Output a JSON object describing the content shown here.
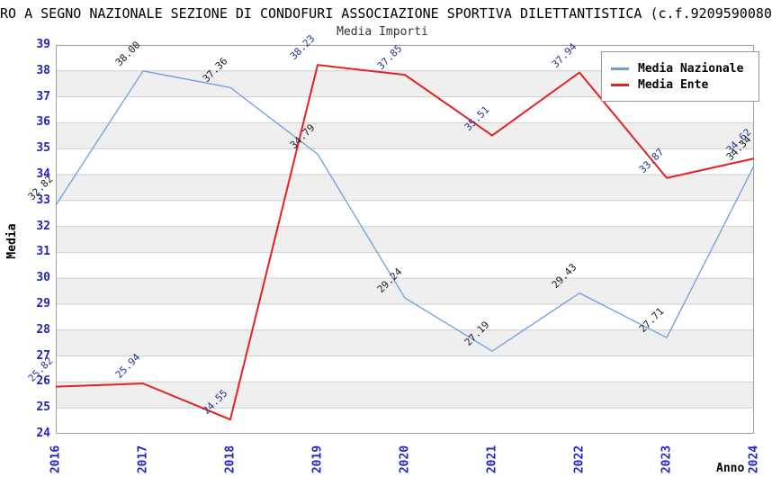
{
  "page": {
    "title": "RO A SEGNO NAZIONALE SEZIONE DI CONDOFURI ASSOCIAZIONE SPORTIVA DILETTANTISTICA (c.f.9209590080"
  },
  "chart_data": {
    "type": "line",
    "title": "Media Importi",
    "xlabel": "Anno",
    "ylabel": "Media",
    "categories": [
      "2016",
      "2017",
      "2018",
      "2019",
      "2020",
      "2021",
      "2022",
      "2023",
      "2024"
    ],
    "series": [
      {
        "name": "Media Nazionale",
        "color": "#6d9ee3",
        "label_color": "#1a1a1a",
        "stroke_width": 1.3,
        "values": [
          32.82,
          38.0,
          37.36,
          34.79,
          29.24,
          27.19,
          29.43,
          27.71,
          34.34
        ],
        "labels": [
          "32.82",
          "38.00",
          "37.36",
          "34.79",
          "29.24",
          "27.19",
          "29.43",
          "27.71",
          "34.34"
        ]
      },
      {
        "name": "Media Ente",
        "color": "#e32222",
        "label_color": "#223399",
        "stroke_width": 2,
        "values": [
          25.82,
          25.94,
          24.55,
          38.23,
          37.85,
          35.51,
          37.94,
          33.87,
          34.62
        ],
        "labels": [
          "25.82",
          "25.94",
          "24.55",
          "38.23",
          "37.85",
          "35.51",
          "37.94",
          "33.87",
          "34.62"
        ]
      }
    ],
    "ylim": [
      24,
      39
    ],
    "ytick_step": 1,
    "grid": true,
    "legend_position": "top-right",
    "axis_tick_color": "#2222cc",
    "band_colors": [
      "#ffffff",
      "#efefef"
    ],
    "grid_color": "#cfcfcf",
    "frame_color": "#a0a0a0"
  }
}
